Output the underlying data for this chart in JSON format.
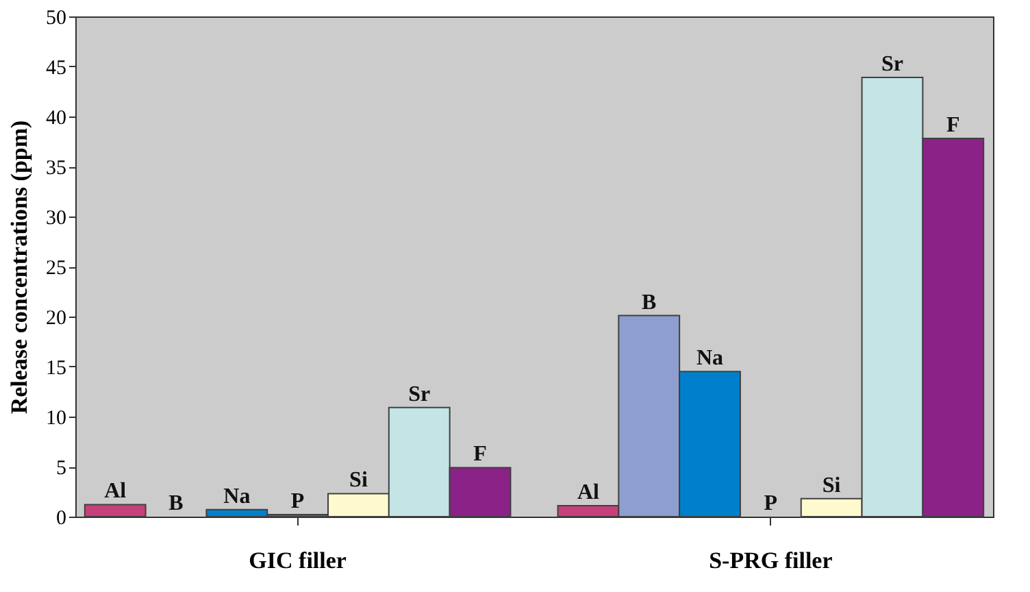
{
  "chart_data": {
    "type": "bar",
    "ylabel": "Release concentrations  (ppm)",
    "categories": [
      "GIC filler",
      "S-PRG filler"
    ],
    "series": [
      {
        "name": "Al",
        "color": "#c8407a",
        "values": [
          1.2,
          1.1
        ]
      },
      {
        "name": "B",
        "color": "#8f9ed0",
        "values": [
          null,
          20.1
        ]
      },
      {
        "name": "Na",
        "color": "#0080cc",
        "values": [
          0.7,
          14.5
        ]
      },
      {
        "name": "P",
        "color": "#5060a0",
        "values": [
          0.2,
          null
        ]
      },
      {
        "name": "Si",
        "color": "#fffacd",
        "values": [
          2.3,
          1.8
        ]
      },
      {
        "name": "Sr",
        "color": "#c4e4e6",
        "values": [
          10.9,
          43.9
        ]
      },
      {
        "name": "F",
        "color": "#8b2288",
        "values": [
          4.9,
          37.8
        ]
      }
    ],
    "ylim": [
      0,
      50
    ],
    "yticks": [
      0,
      5,
      10,
      15,
      20,
      25,
      30,
      35,
      40,
      45,
      50
    ],
    "grid": false,
    "legend": false
  }
}
